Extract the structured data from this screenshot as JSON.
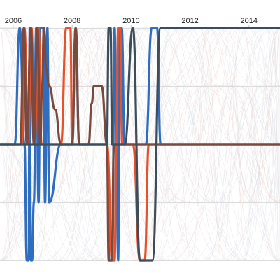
{
  "chart_data": {
    "type": "line",
    "x_axis": {
      "position": "top",
      "range": [
        2005.55,
        2015.05
      ],
      "ticks": [
        {
          "value": 2006,
          "label": "2006"
        },
        {
          "value": 2008,
          "label": "2008"
        },
        {
          "value": 2010,
          "label": "2010"
        },
        {
          "value": 2012,
          "label": "2012"
        },
        {
          "value": 2014,
          "label": "2014"
        }
      ]
    },
    "y_axis": {
      "levels": [
        1,
        2,
        3,
        4,
        5
      ],
      "range": [
        1,
        5
      ],
      "grid": true,
      "tick_labels": "none"
    },
    "colors": {
      "background_lines": [
        "#ebd4d0",
        "#d6dde8",
        "#e4e4e4"
      ],
      "grid": "#dcdcdc"
    },
    "series": [
      {
        "color": "#2f6ebf",
        "points": [
          [
            2005.55,
            3
          ],
          [
            2006.05,
            3
          ],
          [
            2006.22,
            1
          ],
          [
            2006.38,
            3
          ],
          [
            2006.46,
            5
          ],
          [
            2006.52,
            5
          ],
          [
            2006.56,
            1
          ],
          [
            2006.6,
            5
          ],
          [
            2006.64,
            5
          ],
          [
            2006.7,
            4
          ],
          [
            2006.78,
            1
          ],
          [
            2006.86,
            4
          ],
          [
            2006.92,
            1
          ],
          [
            2007.02,
            1
          ],
          [
            2007.08,
            4
          ],
          [
            2007.16,
            1
          ],
          [
            2007.22,
            4
          ],
          [
            2007.62,
            3
          ],
          [
            2008.0,
            3
          ],
          [
            2008.12,
            1
          ],
          [
            2008.24,
            3
          ],
          [
            2009.18,
            3
          ],
          [
            2009.26,
            5
          ],
          [
            2009.36,
            5
          ],
          [
            2009.44,
            1
          ],
          [
            2009.5,
            3
          ],
          [
            2009.56,
            5
          ],
          [
            2009.62,
            1
          ],
          [
            2009.68,
            1
          ],
          [
            2009.78,
            3
          ],
          [
            2010.5,
            3
          ],
          [
            2010.7,
            1
          ],
          [
            2010.88,
            1
          ],
          [
            2011.0,
            3
          ],
          [
            2015.05,
            3
          ]
        ]
      },
      {
        "color": "#e8522a",
        "points": [
          [
            2005.55,
            3
          ],
          [
            2006.28,
            3
          ],
          [
            2006.38,
            1
          ],
          [
            2006.5,
            3
          ],
          [
            2006.62,
            1
          ],
          [
            2006.72,
            3
          ],
          [
            2006.86,
            1
          ],
          [
            2006.96,
            3
          ],
          [
            2007.22,
            3
          ],
          [
            2007.62,
            3
          ],
          [
            2007.8,
            1
          ],
          [
            2007.94,
            1
          ],
          [
            2008.0,
            3
          ],
          [
            2009.18,
            3
          ],
          [
            2009.36,
            5
          ],
          [
            2009.44,
            5
          ],
          [
            2009.5,
            3
          ],
          [
            2009.56,
            1
          ],
          [
            2009.62,
            1
          ],
          [
            2009.7,
            3
          ],
          [
            2010.06,
            3
          ],
          [
            2010.3,
            5
          ],
          [
            2010.46,
            5
          ],
          [
            2010.6,
            3
          ],
          [
            2015.05,
            3
          ]
        ]
      },
      {
        "color": "#7a4a3e",
        "points": [
          [
            2005.55,
            3
          ],
          [
            2006.24,
            3
          ],
          [
            2006.36,
            1
          ],
          [
            2006.46,
            3
          ],
          [
            2006.6,
            1
          ],
          [
            2006.7,
            3
          ],
          [
            2006.82,
            1
          ],
          [
            2006.92,
            3
          ],
          [
            2006.98,
            2
          ],
          [
            2007.04,
            1
          ],
          [
            2007.12,
            1.7
          ],
          [
            2007.22,
            2
          ],
          [
            2007.42,
            2.4
          ],
          [
            2007.62,
            3
          ],
          [
            2008.0,
            3
          ],
          [
            2008.12,
            1
          ],
          [
            2008.24,
            3
          ],
          [
            2008.56,
            3
          ],
          [
            2008.66,
            2.3
          ],
          [
            2008.74,
            2
          ],
          [
            2009.0,
            2
          ],
          [
            2009.18,
            3
          ],
          [
            2009.24,
            5
          ],
          [
            2009.34,
            5
          ],
          [
            2009.42,
            3
          ],
          [
            2015.05,
            3
          ]
        ]
      },
      {
        "color": "#3e4d5a",
        "points": [
          [
            2005.55,
            3
          ],
          [
            2009.18,
            3
          ],
          [
            2009.24,
            1
          ],
          [
            2009.3,
            1
          ],
          [
            2009.36,
            3
          ],
          [
            2009.78,
            3
          ],
          [
            2010.06,
            1
          ],
          [
            2010.3,
            5
          ],
          [
            2010.46,
            5
          ],
          [
            2010.58,
            5
          ],
          [
            2010.72,
            5
          ],
          [
            2011.0,
            1
          ],
          [
            2015.05,
            1
          ]
        ]
      }
    ]
  }
}
